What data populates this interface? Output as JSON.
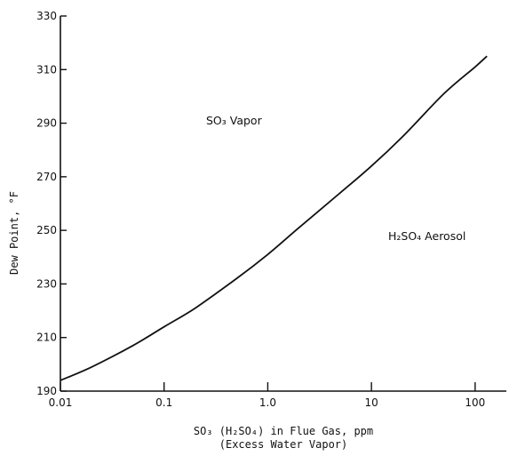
{
  "chart_data": {
    "type": "line",
    "x_scale": "log",
    "xlim": [
      0.01,
      200
    ],
    "ylim": [
      190,
      330
    ],
    "grid": false,
    "legend": "none",
    "line_color": "#111111",
    "x_ticks": [
      0.01,
      0.1,
      1.0,
      10,
      100
    ],
    "x_tick_labels": [
      "0.01",
      "0.1",
      "1.0",
      "10",
      "100"
    ],
    "y_ticks": [
      190,
      210,
      230,
      250,
      270,
      290,
      310,
      330
    ],
    "y_tick_labels": [
      "190",
      "210",
      "230",
      "250",
      "270",
      "290",
      "310",
      "330"
    ],
    "ylabel": "Dew Point, °F",
    "xlabel_line1": "SO₃ (H₂SO₄) in Flue Gas, ppm",
    "xlabel_line2": "(Excess Water Vapor)",
    "annotations": [
      {
        "text": "SO₃ Vapor",
        "x": 0.6,
        "y": 291
      },
      {
        "text": "H₂SO₄ Aerosol",
        "x": 28,
        "y": 251
      }
    ],
    "x": [
      0.01,
      0.02,
      0.05,
      0.1,
      0.2,
      0.5,
      1.0,
      2.0,
      5.0,
      10,
      20,
      50,
      100,
      130
    ],
    "y": [
      194,
      199,
      207,
      214,
      221,
      232,
      241,
      251,
      264,
      274,
      285,
      301,
      311,
      315
    ]
  }
}
